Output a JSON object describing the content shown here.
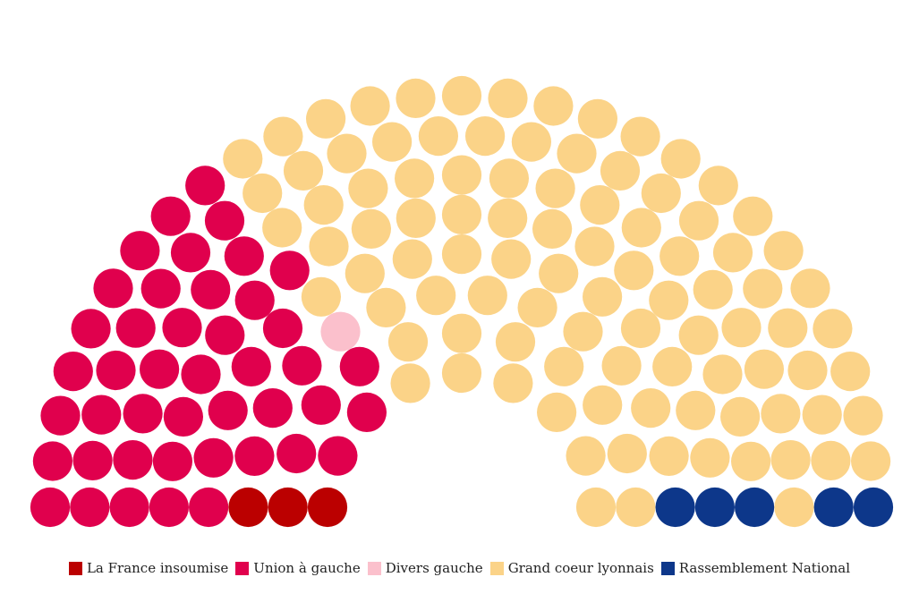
{
  "chart_data": {
    "type": "hemicycle",
    "title": "",
    "total_seats": 150,
    "series": [
      {
        "name": "La France insoumise",
        "values": [
          3
        ],
        "color": "#bb0000"
      },
      {
        "name": "Union à gauche",
        "values": [
          44
        ],
        "color": "#e0004d"
      },
      {
        "name": "Divers gauche",
        "values": [
          1
        ],
        "color": "#fbc0cc"
      },
      {
        "name": "Grand coeur lyonnais",
        "values": [
          97
        ],
        "color": "#fbd388"
      },
      {
        "name": "Rassemblement National",
        "values": [
          5
        ],
        "color": "#0d378a"
      }
    ],
    "legend_position": "bottom-center"
  }
}
